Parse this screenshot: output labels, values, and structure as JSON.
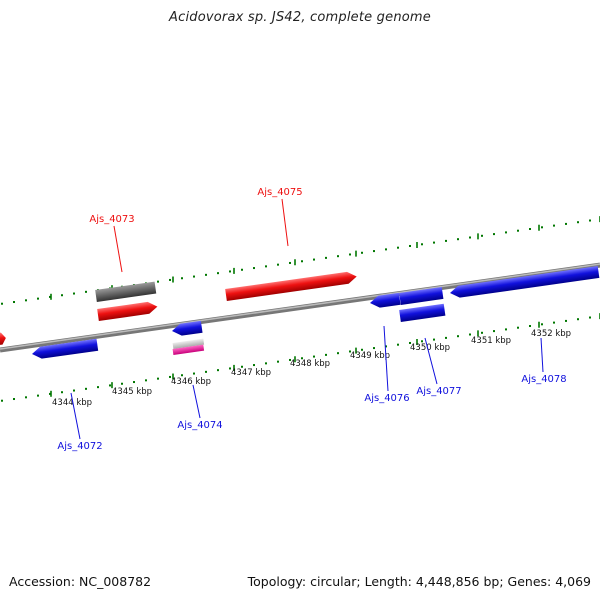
{
  "title": "Acidovorax sp. JS42, complete genome",
  "footer": {
    "accession": "Accession: NC_008782",
    "summary": "Topology: circular; Length: 4,448,856 bp; Genes: 4,069"
  },
  "colors": {
    "forward": "#ee1111",
    "reverse": "#1111dd",
    "pseudo_gray": "#666666",
    "rna_pink": "#ee1199",
    "backbone": "#888888",
    "tick": "#007700"
  },
  "position_labels": [
    "4344 kbp",
    "4345 kbp",
    "4346 kbp",
    "4347 kbp",
    "4348 kbp",
    "4349 kbp",
    "4350 kbp",
    "4351 kbp",
    "4352 kbp"
  ],
  "gene_labels": {
    "forward": [
      "Ajs_4073",
      "Ajs_4075"
    ],
    "reverse": [
      "Ajs_4072",
      "Ajs_4074",
      "Ajs_4076",
      "Ajs_4077",
      "Ajs_4078"
    ]
  }
}
